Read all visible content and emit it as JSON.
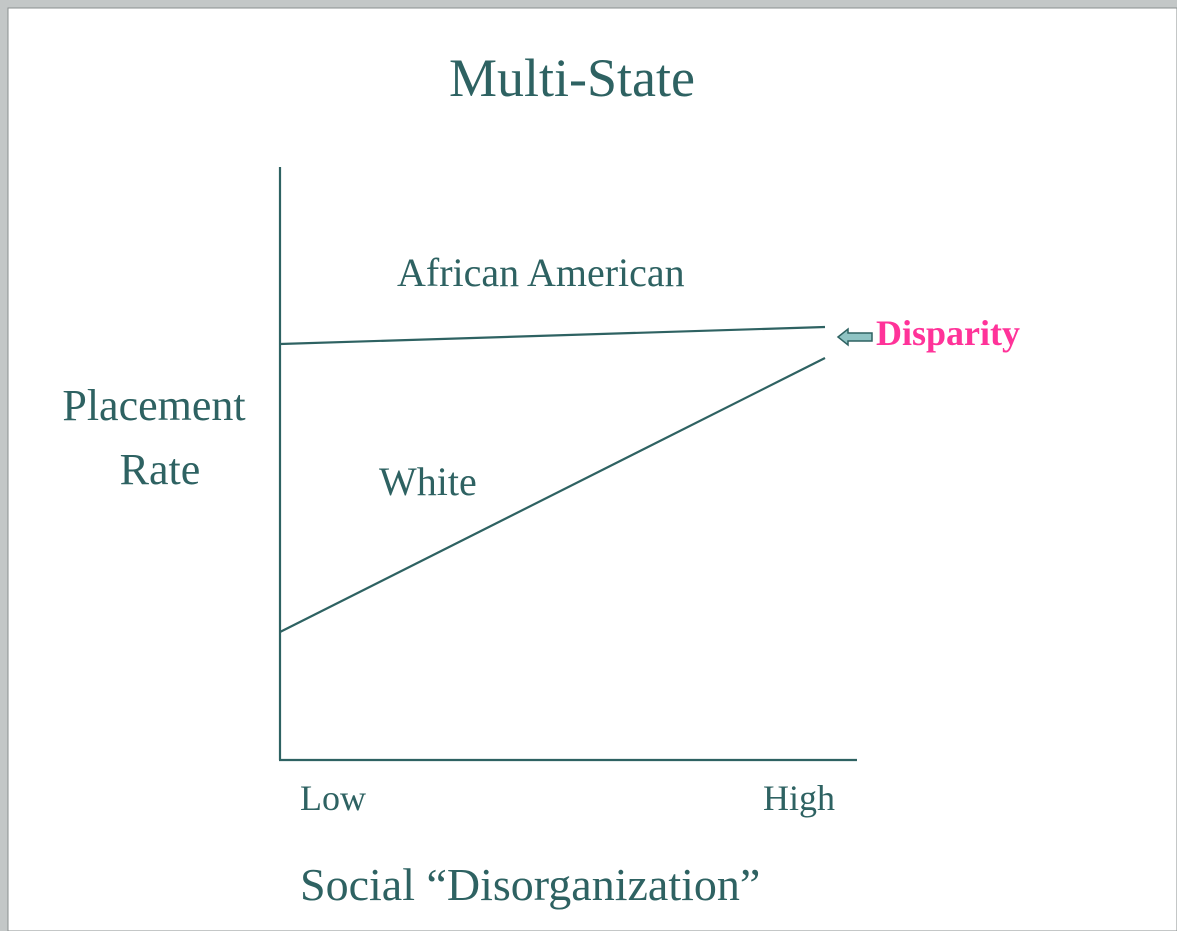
{
  "title": "Multi-State",
  "y_axis_label": [
    "Placement",
    "Rate"
  ],
  "series_labels": [
    "African American",
    "White"
  ],
  "annotation": "Disparity",
  "x_ticks": [
    "Low",
    "High"
  ],
  "x_axis_label": "Social “Disorganization”"
}
